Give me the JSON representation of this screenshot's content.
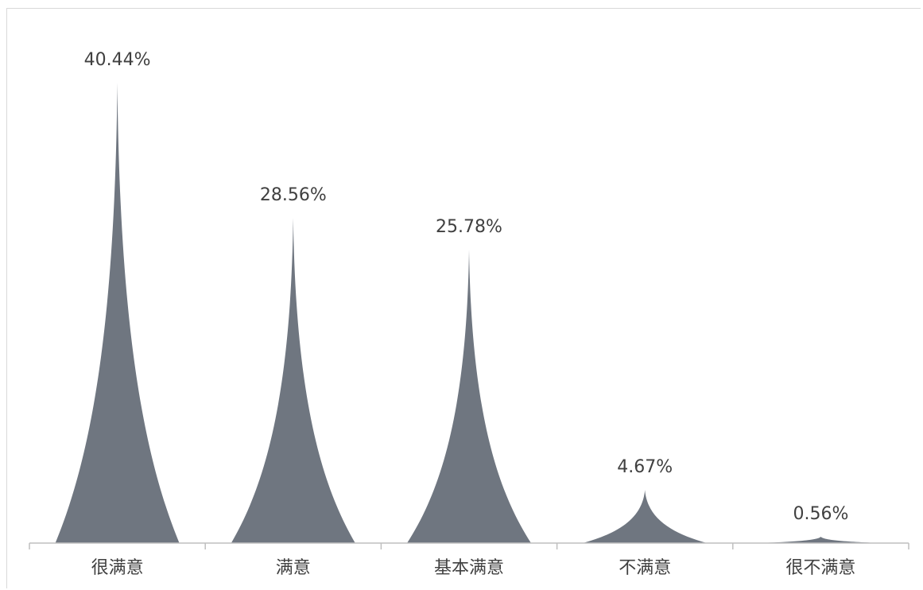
{
  "chart_data": {
    "type": "bar",
    "bar_style": "spike",
    "categories": [
      "很满意",
      "满意",
      "基本满意",
      "不满意",
      "很不满意"
    ],
    "values": [
      40.44,
      28.56,
      25.78,
      4.67,
      0.56
    ],
    "value_labels": [
      "40.44%",
      "28.56%",
      "25.78%",
      "4.67%",
      "0.56%"
    ],
    "title": "",
    "xlabel": "",
    "ylabel": "",
    "ylim": [
      0,
      40.44
    ],
    "grid": false,
    "legend": "none",
    "colors": {
      "bar": "#6f7680",
      "axis": "#bfbfbf",
      "text": "#404040"
    }
  }
}
